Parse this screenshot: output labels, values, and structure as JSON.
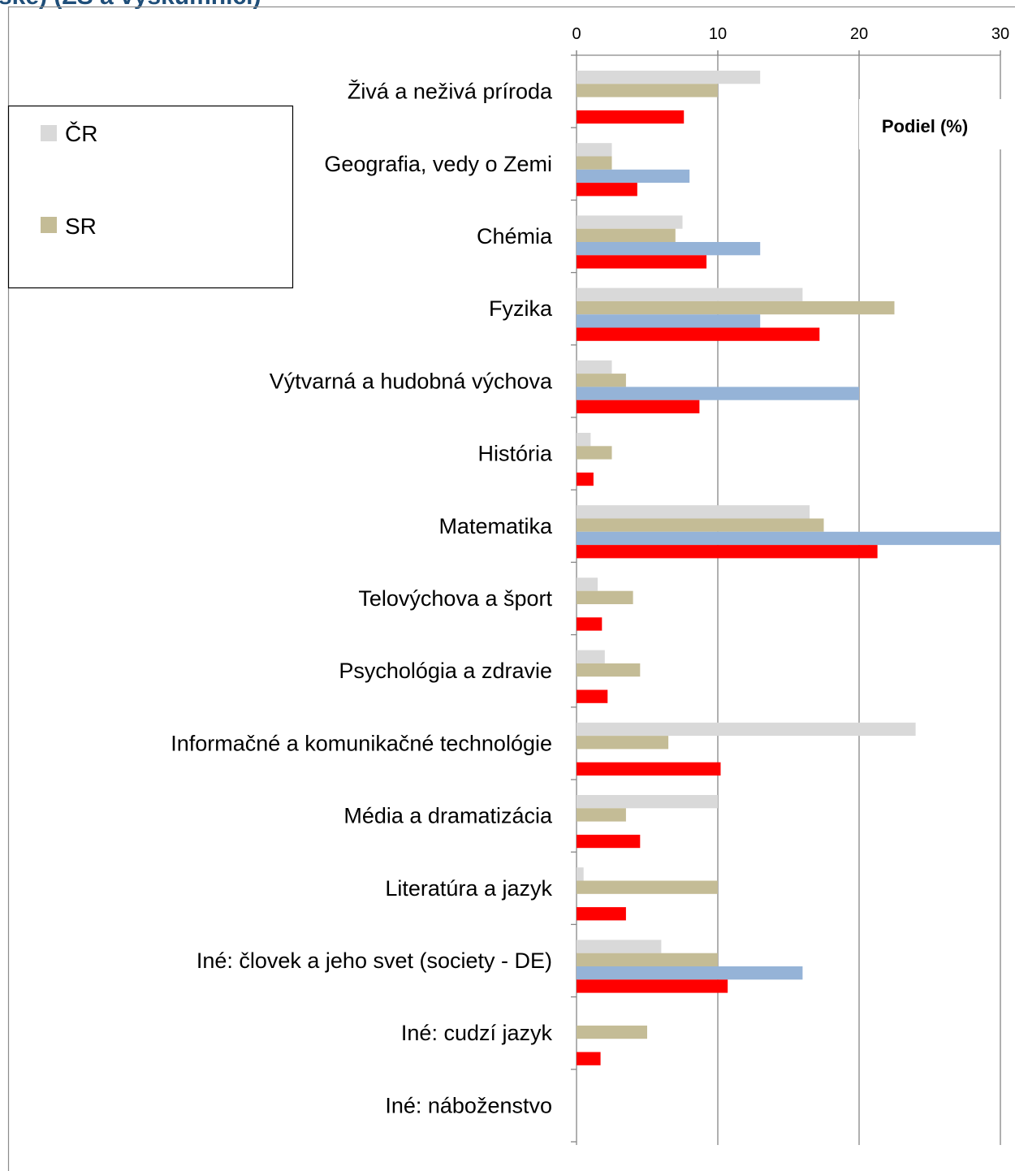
{
  "chart_data": {
    "type": "bar",
    "orientation": "horizontal",
    "title": "ske) (ZŠ a výskumníci)",
    "annotation": "Podiel (%)",
    "xlim": [
      0,
      30
    ],
    "x_ticks": [
      "0",
      "10",
      "20",
      "30"
    ],
    "grid": "vertical",
    "legend_position": "left",
    "categories": [
      "Živá a neživá príroda",
      "Geografia, vedy o Zemi",
      "Chémia",
      "Fyzika",
      "Výtvarná a hudobná výchova",
      "História",
      "Matematika",
      "Telovýchova a šport",
      "Psychológia a zdravie",
      "Informačné a komunikačné technológie",
      "Média a dramatizácia",
      "Literatúra a jazyk",
      "Iné: človek a jeho svet (society - DE)",
      "Iné: cudzí jazyk",
      "Iné: náboženstvo"
    ],
    "series": [
      {
        "name": "ČR",
        "color": "#d9d9d9",
        "values": [
          13,
          2.5,
          7.5,
          16,
          2.5,
          1,
          16.5,
          1.5,
          2,
          24,
          10,
          0.5,
          6,
          0,
          0
        ]
      },
      {
        "name": "SR",
        "color": "#c4bc96",
        "values": [
          10,
          2.5,
          7,
          22.5,
          3.5,
          2.5,
          17.5,
          4,
          4.5,
          6.5,
          3.5,
          10,
          10,
          5,
          0
        ]
      },
      {
        "color": "#95b3d7",
        "values": [
          0,
          8,
          13,
          13,
          20,
          0,
          30,
          0,
          0,
          0,
          0,
          0,
          16,
          0,
          0
        ]
      },
      {
        "color": "#ff0000",
        "values": [
          7.6,
          4.3,
          9.2,
          17.2,
          8.7,
          1.2,
          21.3,
          1.8,
          2.2,
          10.2,
          4.5,
          3.5,
          10.7,
          1.7,
          0
        ]
      }
    ]
  }
}
